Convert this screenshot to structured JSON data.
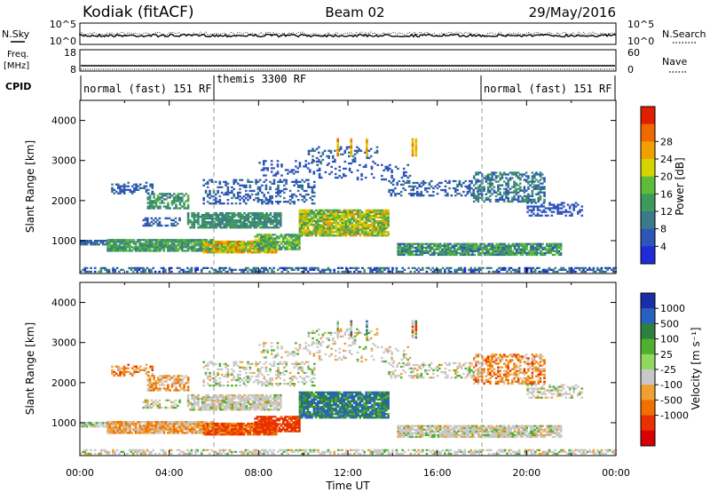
{
  "header": {
    "station": "Kodiak (fitACF)",
    "beam": "Beam 02",
    "date": "29/May/2016"
  },
  "noise_panel": {
    "left_label": "N.Sky",
    "right_label": "N.Search",
    "left_ticks": [
      "10^5",
      "10^0"
    ],
    "right_ticks": [
      "10^5",
      "10^0"
    ]
  },
  "freq_panel": {
    "left_label_top": "Freq.",
    "left_label_bottom": "[MHz]",
    "right_label": "Nave",
    "left_ticks": [
      "18",
      "8"
    ],
    "right_ticks": [
      "60",
      "0"
    ]
  },
  "cpid": {
    "label": "CPID",
    "segments": [
      {
        "text": "normal (fast) 151 RF",
        "start_h": 0,
        "end_h": 6
      },
      {
        "text": "themis 3300 RF",
        "start_h": 6,
        "end_h": 18
      },
      {
        "text": "normal (fast) 151 RF",
        "start_h": 18,
        "end_h": 24
      }
    ]
  },
  "chart_data": [
    {
      "type": "heatmap",
      "name": "power",
      "ylabel": "Slant Range [km]",
      "ylim": [
        180,
        4500
      ],
      "yticks": [
        "1000",
        "2000",
        "3000",
        "4000"
      ],
      "colorbar": {
        "label": "Power [dB]",
        "ticks": [
          "4",
          "8",
          "12",
          "16",
          "20",
          "24",
          "28"
        ],
        "colors": [
          "#1f2bd6",
          "#2e55b8",
          "#3a7a8a",
          "#3e9a5c",
          "#5fbb3c",
          "#d4d400",
          "#f0a000",
          "#f06800",
          "#e02000"
        ]
      }
    },
    {
      "type": "heatmap",
      "name": "velocity",
      "ylabel": "Slant Range [km]",
      "xlabel": "Time UT",
      "ylim": [
        180,
        4500
      ],
      "yticks": [
        "1000",
        "2000",
        "3000",
        "4000"
      ],
      "xticks": [
        "00:00",
        "04:00",
        "08:00",
        "12:00",
        "16:00",
        "20:00",
        "00:00"
      ],
      "colorbar": {
        "label": "Velocity [m s⁻¹]",
        "ticks": [
          "1000",
          "500",
          "100",
          "25",
          "-25",
          "-100",
          "-500",
          "-1000"
        ],
        "colors": [
          "#1a2ea8",
          "#2860c0",
          "#2e8040",
          "#4fb030",
          "#90d860",
          "#c8c8c8",
          "#f0a030",
          "#f07000",
          "#e83000",
          "#d80000"
        ]
      }
    }
  ]
}
